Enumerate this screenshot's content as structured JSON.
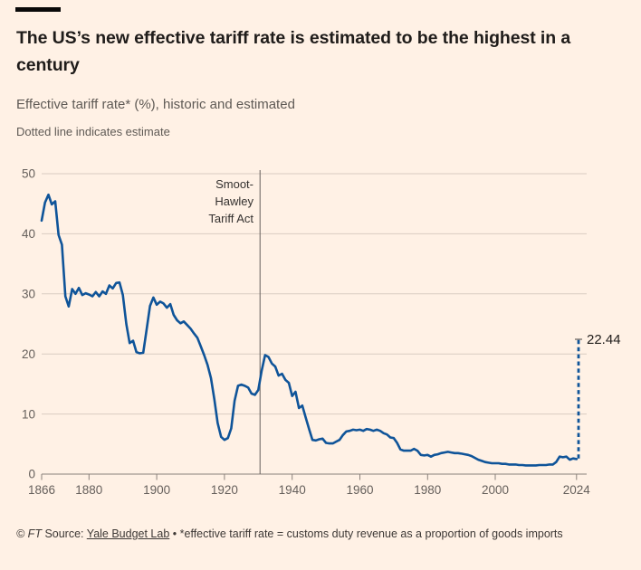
{
  "header": {
    "title_lines": [
      "The US’s new effective tariff rate is estimated to be the highest in a",
      "century"
    ],
    "subtitle": "Effective tariff rate* (%), historic and estimated",
    "note": "Dotted line indicates estimate"
  },
  "annotations": {
    "event_label_lines": [
      "Smoot-",
      "Hawley",
      "Tariff Act"
    ]
  },
  "footer": {
    "copyright": "© FT",
    "source_prefix": " Source: ",
    "source_link": "Yale Budget Lab",
    "separator": " • ",
    "footnote": "*effective tariff rate = customs duty revenue as a proportion of goods imports"
  },
  "chart_data": {
    "type": "line",
    "title": "Effective tariff rate (%), historic and estimated",
    "xlabel": "",
    "ylabel": "",
    "xlim": [
      1866,
      2027
    ],
    "ylim": [
      0,
      50
    ],
    "grid": "horizontal",
    "x_ticks": [
      1866,
      1880,
      1900,
      1920,
      1940,
      1960,
      1980,
      2000,
      2024
    ],
    "y_ticks": [
      0,
      10,
      20,
      30,
      40,
      50
    ],
    "event_line": {
      "year": 1930.5,
      "label": "Smoot-Hawley Tariff Act"
    },
    "end_marker": {
      "year": 2024.6,
      "value": 22.44,
      "label": "22.44"
    },
    "colors": {
      "line": "#0f5499",
      "grid": "#d9ccc1",
      "axis": "#8a817b",
      "rule": "#66605c",
      "background": "#FFF1E5",
      "tick_text": "#66605c"
    },
    "series": [
      {
        "name": "historic",
        "style": "solid",
        "points": [
          [
            1866,
            42.2
          ],
          [
            1867,
            45.2
          ],
          [
            1868,
            46.5
          ],
          [
            1869,
            44.9
          ],
          [
            1870,
            45.4
          ],
          [
            1871,
            39.8
          ],
          [
            1872,
            38.2
          ],
          [
            1873,
            29.6
          ],
          [
            1874,
            27.9
          ],
          [
            1875,
            30.8
          ],
          [
            1876,
            30.0
          ],
          [
            1877,
            31.0
          ],
          [
            1878,
            29.8
          ],
          [
            1879,
            30.1
          ],
          [
            1880,
            29.9
          ],
          [
            1881,
            29.6
          ],
          [
            1882,
            30.3
          ],
          [
            1883,
            29.6
          ],
          [
            1884,
            30.4
          ],
          [
            1885,
            30.0
          ],
          [
            1886,
            31.4
          ],
          [
            1887,
            30.9
          ],
          [
            1888,
            31.8
          ],
          [
            1889,
            31.9
          ],
          [
            1890,
            29.8
          ],
          [
            1891,
            25.0
          ],
          [
            1892,
            21.8
          ],
          [
            1893,
            22.2
          ],
          [
            1894,
            20.3
          ],
          [
            1895,
            20.1
          ],
          [
            1896,
            20.2
          ],
          [
            1897,
            24.0
          ],
          [
            1898,
            28.0
          ],
          [
            1899,
            29.4
          ],
          [
            1900,
            28.2
          ],
          [
            1901,
            28.7
          ],
          [
            1902,
            28.4
          ],
          [
            1903,
            27.7
          ],
          [
            1904,
            28.3
          ],
          [
            1905,
            26.5
          ],
          [
            1906,
            25.6
          ],
          [
            1907,
            25.1
          ],
          [
            1908,
            25.4
          ],
          [
            1909,
            24.8
          ],
          [
            1910,
            24.2
          ],
          [
            1911,
            23.4
          ],
          [
            1912,
            22.7
          ],
          [
            1913,
            21.3
          ],
          [
            1914,
            19.8
          ],
          [
            1915,
            18.2
          ],
          [
            1916,
            16.0
          ],
          [
            1917,
            12.5
          ],
          [
            1918,
            8.5
          ],
          [
            1919,
            6.2
          ],
          [
            1920,
            5.7
          ],
          [
            1921,
            6.0
          ],
          [
            1922,
            7.6
          ],
          [
            1923,
            12.2
          ],
          [
            1924,
            14.7
          ],
          [
            1925,
            14.9
          ],
          [
            1926,
            14.7
          ],
          [
            1927,
            14.4
          ],
          [
            1928,
            13.4
          ],
          [
            1929,
            13.2
          ],
          [
            1930,
            14.0
          ],
          [
            1931,
            17.2
          ],
          [
            1932,
            19.8
          ],
          [
            1933,
            19.5
          ],
          [
            1934,
            18.4
          ],
          [
            1935,
            17.9
          ],
          [
            1936,
            16.4
          ],
          [
            1937,
            16.7
          ],
          [
            1938,
            15.7
          ],
          [
            1939,
            15.2
          ],
          [
            1940,
            13.0
          ],
          [
            1941,
            13.7
          ],
          [
            1942,
            11.0
          ],
          [
            1943,
            11.4
          ],
          [
            1944,
            9.4
          ],
          [
            1945,
            7.5
          ],
          [
            1946,
            5.7
          ],
          [
            1947,
            5.6
          ],
          [
            1948,
            5.8
          ],
          [
            1949,
            5.9
          ],
          [
            1950,
            5.2
          ],
          [
            1951,
            5.1
          ],
          [
            1952,
            5.1
          ],
          [
            1953,
            5.4
          ],
          [
            1954,
            5.7
          ],
          [
            1955,
            6.5
          ],
          [
            1956,
            7.1
          ],
          [
            1957,
            7.2
          ],
          [
            1958,
            7.4
          ],
          [
            1959,
            7.3
          ],
          [
            1960,
            7.4
          ],
          [
            1961,
            7.2
          ],
          [
            1962,
            7.5
          ],
          [
            1963,
            7.4
          ],
          [
            1964,
            7.2
          ],
          [
            1965,
            7.4
          ],
          [
            1966,
            7.2
          ],
          [
            1967,
            6.8
          ],
          [
            1968,
            6.6
          ],
          [
            1969,
            6.1
          ],
          [
            1970,
            6.0
          ],
          [
            1971,
            5.2
          ],
          [
            1972,
            4.1
          ],
          [
            1973,
            3.9
          ],
          [
            1974,
            3.9
          ],
          [
            1975,
            3.9
          ],
          [
            1976,
            4.2
          ],
          [
            1977,
            3.9
          ],
          [
            1978,
            3.2
          ],
          [
            1979,
            3.1
          ],
          [
            1980,
            3.2
          ],
          [
            1981,
            2.9
          ],
          [
            1982,
            3.2
          ],
          [
            1983,
            3.3
          ],
          [
            1984,
            3.5
          ],
          [
            1985,
            3.6
          ],
          [
            1986,
            3.7
          ],
          [
            1987,
            3.6
          ],
          [
            1988,
            3.5
          ],
          [
            1989,
            3.5
          ],
          [
            1990,
            3.4
          ],
          [
            1991,
            3.3
          ],
          [
            1992,
            3.2
          ],
          [
            1993,
            3.0
          ],
          [
            1994,
            2.7
          ],
          [
            1995,
            2.4
          ],
          [
            1996,
            2.2
          ],
          [
            1997,
            2.0
          ],
          [
            1998,
            1.9
          ],
          [
            1999,
            1.8
          ],
          [
            2000,
            1.8
          ],
          [
            2001,
            1.8
          ],
          [
            2002,
            1.7
          ],
          [
            2003,
            1.7
          ],
          [
            2004,
            1.6
          ],
          [
            2005,
            1.6
          ],
          [
            2006,
            1.6
          ],
          [
            2007,
            1.5
          ],
          [
            2008,
            1.5
          ],
          [
            2009,
            1.45
          ],
          [
            2010,
            1.45
          ],
          [
            2011,
            1.45
          ],
          [
            2012,
            1.45
          ],
          [
            2013,
            1.5
          ],
          [
            2014,
            1.5
          ],
          [
            2015,
            1.5
          ],
          [
            2016,
            1.6
          ],
          [
            2017,
            1.6
          ],
          [
            2018,
            2.0
          ],
          [
            2019,
            2.9
          ],
          [
            2020,
            2.8
          ],
          [
            2021,
            2.9
          ],
          [
            2022,
            2.4
          ],
          [
            2023,
            2.6
          ],
          [
            2024,
            2.5
          ]
        ]
      },
      {
        "name": "estimate",
        "style": "dashed",
        "points": [
          [
            2024.6,
            2.6
          ],
          [
            2024.6,
            22.44
          ]
        ]
      }
    ]
  }
}
